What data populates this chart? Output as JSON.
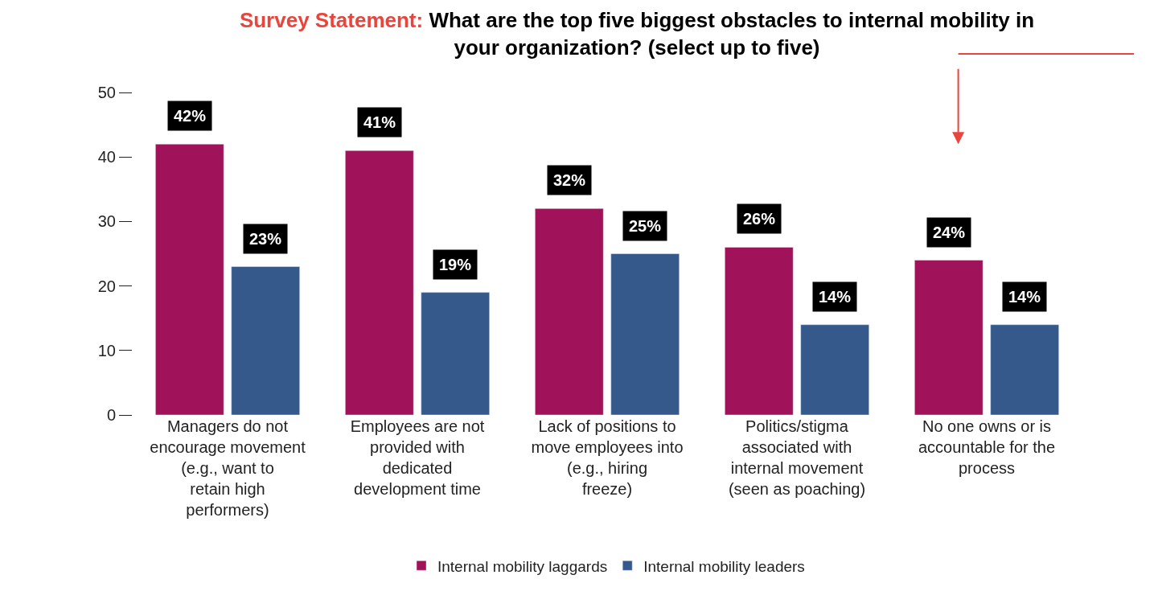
{
  "chart_data": {
    "type": "bar",
    "title": "Survey Statement: What are the top five biggest obstacles to internal mobility in your organization? (select up to five)",
    "categories": [
      "Managers do not encourage movement (e.g., want to retain high performers)",
      "Employees are not provided with dedicated development time",
      "Lack of positions to move employees into (e.g., hiring freeze)",
      "Politics/stigma associated with internal movement (seen as poaching)",
      "No one owns or is accountable for the process"
    ],
    "series": [
      {
        "name": "Internal mobility laggards",
        "color": "#a0135a",
        "values": [
          42,
          41,
          32,
          26,
          24
        ],
        "value_labels": [
          "42%",
          "41%",
          "32%",
          "26%",
          "24%"
        ]
      },
      {
        "name": "Internal mobility leaders",
        "color": "#34598a",
        "values": [
          23,
          19,
          25,
          14,
          14
        ],
        "value_labels": [
          "23%",
          "19%",
          "25%",
          "14%",
          "14%"
        ]
      }
    ],
    "ylim": [
      0,
      50
    ],
    "yticks": [
      0,
      10,
      20,
      30,
      40,
      50
    ],
    "legend": "bottom"
  }
}
